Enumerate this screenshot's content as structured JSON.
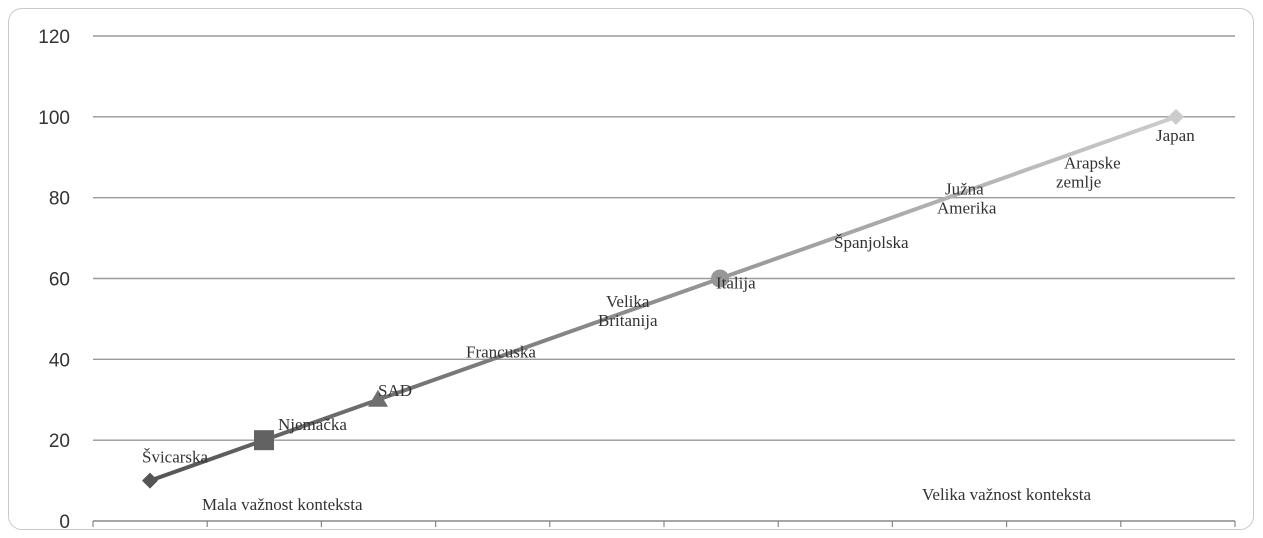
{
  "chart_data": {
    "type": "line",
    "ylim": [
      0,
      120
    ],
    "y_ticks": [
      0,
      20,
      40,
      60,
      80,
      100,
      120
    ],
    "grid": true,
    "points": [
      {
        "x": 1,
        "y": 10,
        "label": [
          "Švicarska"
        ],
        "marker": "diamond"
      },
      {
        "x": 2,
        "y": 20,
        "label": [
          "Njemačka"
        ],
        "marker": "square"
      },
      {
        "x": 3,
        "y": 30,
        "label": [
          "SAD"
        ],
        "marker": "triangle"
      },
      {
        "x": 4,
        "y": 40,
        "label": [
          "Francuska"
        ],
        "marker": "none"
      },
      {
        "x": 5,
        "y": 50,
        "label": [
          "Velika",
          "Britanija"
        ],
        "marker": "none"
      },
      {
        "x": 6,
        "y": 60,
        "label": [
          "Italija"
        ],
        "marker": "circle"
      },
      {
        "x": 7,
        "y": 70,
        "label": [
          "Španjolska"
        ],
        "marker": "none"
      },
      {
        "x": 8,
        "y": 80,
        "label": [
          "Južna",
          "Amerika"
        ],
        "marker": "none"
      },
      {
        "x": 9,
        "y": 90,
        "label": [
          "Arapske",
          "zemlje"
        ],
        "marker": "none"
      },
      {
        "x": 10,
        "y": 100,
        "label": [
          "Japan"
        ],
        "marker": "diamond"
      }
    ],
    "annotations": {
      "low": "Mala važnost konteksta",
      "high": "Velika važnost konteksta"
    },
    "colors": {
      "line_start": "#555555",
      "line_end": "#cccccc",
      "grid": "#9a9a9a",
      "axis": "#888888"
    }
  }
}
